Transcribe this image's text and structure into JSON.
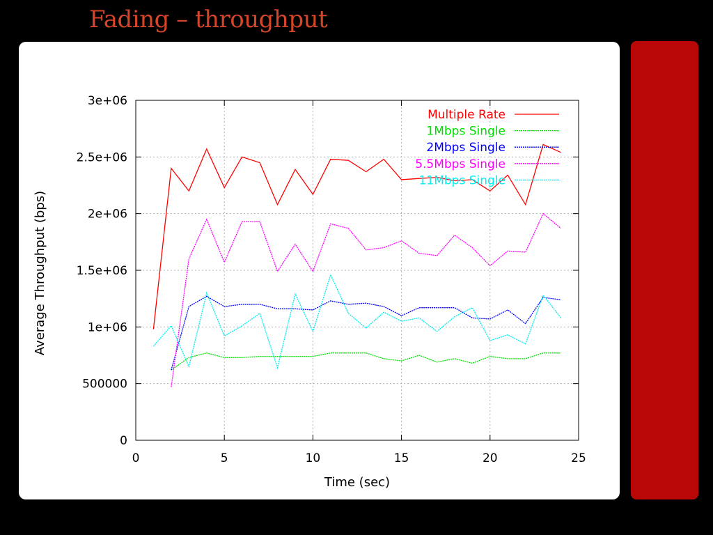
{
  "slide": {
    "title": "Fading – throughput"
  },
  "colors": {
    "background": "#000000",
    "title": "#d4452a",
    "panel": "#ffffff",
    "accent_bar": "#b90607",
    "grid": "#b0b0b0",
    "axis": "#000000"
  },
  "chart_data": {
    "type": "line",
    "title": "",
    "xlabel": "Time (sec)",
    "ylabel": "Average Throughput (bps)",
    "xlim": [
      0,
      25
    ],
    "ylim": [
      0,
      3000000
    ],
    "xticks": [
      0,
      5,
      10,
      15,
      20,
      25
    ],
    "xtick_labels": [
      "0",
      "5",
      "10",
      "15",
      "20",
      "25"
    ],
    "yticks": [
      0,
      500000,
      1000000,
      1500000,
      2000000,
      2500000,
      3000000
    ],
    "ytick_labels": [
      "0",
      "500000",
      "1e+06",
      "1.5e+06",
      "2e+06",
      "2.5e+06",
      "3e+06"
    ],
    "grid": true,
    "legend_position": "top-right",
    "series": [
      {
        "name": "Multiple Rate",
        "color": "#ff0000",
        "x": [
          1,
          2,
          3,
          4,
          5,
          6,
          7,
          8,
          9,
          10,
          11,
          12,
          13,
          14,
          15,
          16,
          17,
          18,
          19,
          20,
          21,
          22,
          23,
          24
        ],
        "y": [
          980000,
          2400000,
          2200000,
          2570000,
          2230000,
          2500000,
          2450000,
          2080000,
          2390000,
          2170000,
          2480000,
          2470000,
          2370000,
          2480000,
          2300000,
          2310000,
          2320000,
          2290000,
          2300000,
          2200000,
          2340000,
          2080000,
          2610000,
          2540000
        ]
      },
      {
        "name": "1Mbps Single",
        "color": "#00dd00",
        "x": [
          2,
          3,
          4,
          5,
          6,
          7,
          8,
          9,
          10,
          11,
          12,
          13,
          14,
          15,
          16,
          17,
          18,
          19,
          20,
          21,
          22,
          23,
          24
        ],
        "y": [
          620000,
          730000,
          770000,
          730000,
          730000,
          740000,
          740000,
          740000,
          740000,
          770000,
          770000,
          770000,
          720000,
          700000,
          750000,
          690000,
          720000,
          680000,
          740000,
          720000,
          720000,
          770000,
          770000
        ]
      },
      {
        "name": "2Mbps Single",
        "color": "#0000ff",
        "x": [
          2,
          3,
          4,
          5,
          6,
          7,
          8,
          9,
          10,
          11,
          12,
          13,
          14,
          15,
          16,
          17,
          18,
          19,
          20,
          21,
          22,
          23,
          24
        ],
        "y": [
          620000,
          1180000,
          1270000,
          1180000,
          1200000,
          1200000,
          1160000,
          1160000,
          1150000,
          1230000,
          1200000,
          1210000,
          1180000,
          1100000,
          1170000,
          1170000,
          1170000,
          1080000,
          1070000,
          1150000,
          1030000,
          1260000,
          1240000
        ]
      },
      {
        "name": "5.5Mbps Single",
        "color": "#ff00ff",
        "x": [
          2,
          3,
          4,
          5,
          6,
          7,
          8,
          9,
          10,
          11,
          12,
          13,
          14,
          15,
          16,
          17,
          18,
          19,
          20,
          21,
          22,
          23,
          24
        ],
        "y": [
          470000,
          1600000,
          1950000,
          1570000,
          1930000,
          1930000,
          1490000,
          1730000,
          1490000,
          1910000,
          1870000,
          1680000,
          1700000,
          1760000,
          1650000,
          1630000,
          1810000,
          1700000,
          1540000,
          1670000,
          1660000,
          2000000,
          1870000
        ]
      },
      {
        "name": "11Mbps Single",
        "color": "#00eeee",
        "x": [
          1,
          2,
          3,
          4,
          5,
          6,
          7,
          8,
          9,
          10,
          11,
          12,
          13,
          14,
          15,
          16,
          17,
          18,
          19,
          20,
          21,
          22,
          23,
          24
        ],
        "y": [
          830000,
          1010000,
          650000,
          1300000,
          920000,
          1010000,
          1120000,
          640000,
          1290000,
          960000,
          1460000,
          1120000,
          990000,
          1130000,
          1050000,
          1080000,
          960000,
          1090000,
          1170000,
          880000,
          930000,
          850000,
          1280000,
          1080000
        ]
      }
    ]
  }
}
